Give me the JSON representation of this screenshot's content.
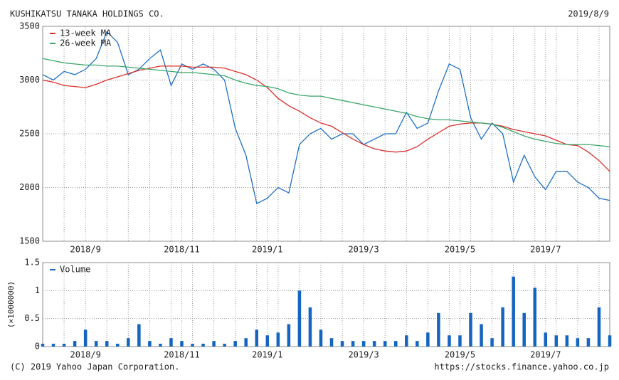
{
  "header": {
    "company": "KUSHIKATSU TANAKA HOLDINGS CO.",
    "date": "2019/8/9"
  },
  "footer": {
    "copyright": "(C) 2019 Yahoo Japan Corporation.",
    "url": "https://stocks.finance.yahoo.co.jp"
  },
  "chart_data": [
    {
      "type": "line",
      "categories": [
        null,
        null,
        null,
        null,
        "2018/9",
        null,
        null,
        null,
        null,
        null,
        null,
        null,
        null,
        "2018/11",
        null,
        null,
        null,
        null,
        null,
        null,
        null,
        "2019/1",
        null,
        null,
        null,
        null,
        null,
        null,
        null,
        null,
        "2019/3",
        null,
        null,
        null,
        null,
        null,
        null,
        null,
        null,
        "2019/5",
        null,
        null,
        null,
        null,
        null,
        null,
        null,
        "2019/7",
        null,
        null,
        null,
        null,
        null,
        null
      ],
      "series": [
        {
          "color": "#1f6fc4",
          "values": [
            3050,
            3000,
            3080,
            3050,
            3100,
            3200,
            3450,
            3350,
            3050,
            3100,
            3200,
            3280,
            2950,
            3150,
            3100,
            3150,
            3100,
            3000,
            2550,
            2300,
            1850,
            1900,
            2000,
            1950,
            2400,
            2500,
            2550,
            2450,
            2500,
            2500,
            2400,
            2450,
            2500,
            2500,
            2700,
            2550,
            2600,
            2900,
            3150,
            3100,
            2650,
            2450,
            2600,
            2500,
            2050,
            2300,
            2100,
            1980,
            2150,
            2150,
            2050,
            2000,
            1900,
            1880
          ]
        },
        {
          "name": "13-week MA",
          "color": "#d9302c",
          "values": [
            3000,
            2980,
            2950,
            2940,
            2930,
            2960,
            3000,
            3030,
            3060,
            3090,
            3110,
            3130,
            3130,
            3130,
            3120,
            3120,
            3120,
            3110,
            3080,
            3050,
            3000,
            2930,
            2830,
            2760,
            2710,
            2650,
            2600,
            2570,
            2510,
            2450,
            2400,
            2360,
            2340,
            2330,
            2340,
            2380,
            2450,
            2510,
            2570,
            2590,
            2600,
            2600,
            2590,
            2570,
            2540,
            2520,
            2500,
            2480,
            2440,
            2400,
            2390,
            2330,
            2250,
            2150
          ]
        },
        {
          "name": "26-week MA",
          "color": "#3aa66a",
          "values": [
            3200,
            3180,
            3160,
            3150,
            3140,
            3140,
            3130,
            3130,
            3120,
            3110,
            3100,
            3090,
            3080,
            3070,
            3070,
            3060,
            3050,
            3040,
            3000,
            2970,
            2950,
            2940,
            2920,
            2880,
            2860,
            2850,
            2850,
            2830,
            2810,
            2790,
            2770,
            2750,
            2730,
            2710,
            2690,
            2660,
            2640,
            2630,
            2630,
            2620,
            2610,
            2600,
            2590,
            2560,
            2520,
            2480,
            2450,
            2430,
            2410,
            2400,
            2400,
            2400,
            2390,
            2380
          ]
        }
      ],
      "ylim": [
        1500,
        3500
      ],
      "yticks": [
        1500,
        2000,
        2500,
        3000,
        3500
      ],
      "grid": true,
      "legend": "upper left"
    },
    {
      "type": "bar",
      "ylabel": "(×1000000)",
      "categories": [
        null,
        null,
        null,
        null,
        "2018/9",
        null,
        null,
        null,
        null,
        null,
        null,
        null,
        null,
        "2018/11",
        null,
        null,
        null,
        null,
        null,
        null,
        null,
        "2019/1",
        null,
        null,
        null,
        null,
        null,
        null,
        null,
        null,
        "2019/3",
        null,
        null,
        null,
        null,
        null,
        null,
        null,
        null,
        "2019/5",
        null,
        null,
        null,
        null,
        null,
        null,
        null,
        "2019/7",
        null,
        null,
        null,
        null,
        null,
        null
      ],
      "series": [
        {
          "name": "Volume",
          "color": "#1565c0",
          "values": [
            0.05,
            0.05,
            0.05,
            0.1,
            0.3,
            0.1,
            0.1,
            0.05,
            0.15,
            0.4,
            0.1,
            0.05,
            0.15,
            0.1,
            0.05,
            0.05,
            0.1,
            0.05,
            0.1,
            0.15,
            0.3,
            0.2,
            0.25,
            0.4,
            1.0,
            0.7,
            0.3,
            0.15,
            0.1,
            0.1,
            0.1,
            0.1,
            0.1,
            0.1,
            0.2,
            0.1,
            0.25,
            0.6,
            0.2,
            0.2,
            0.6,
            0.4,
            0.15,
            0.7,
            1.25,
            0.6,
            1.05,
            0.25,
            0.2,
            0.2,
            0.15,
            0.15,
            0.7,
            0.2
          ]
        }
      ],
      "ylim": [
        0,
        1.5
      ],
      "yticks": [
        0,
        0.5,
        1,
        1.5
      ],
      "grid": true,
      "legend": "upper left"
    }
  ]
}
